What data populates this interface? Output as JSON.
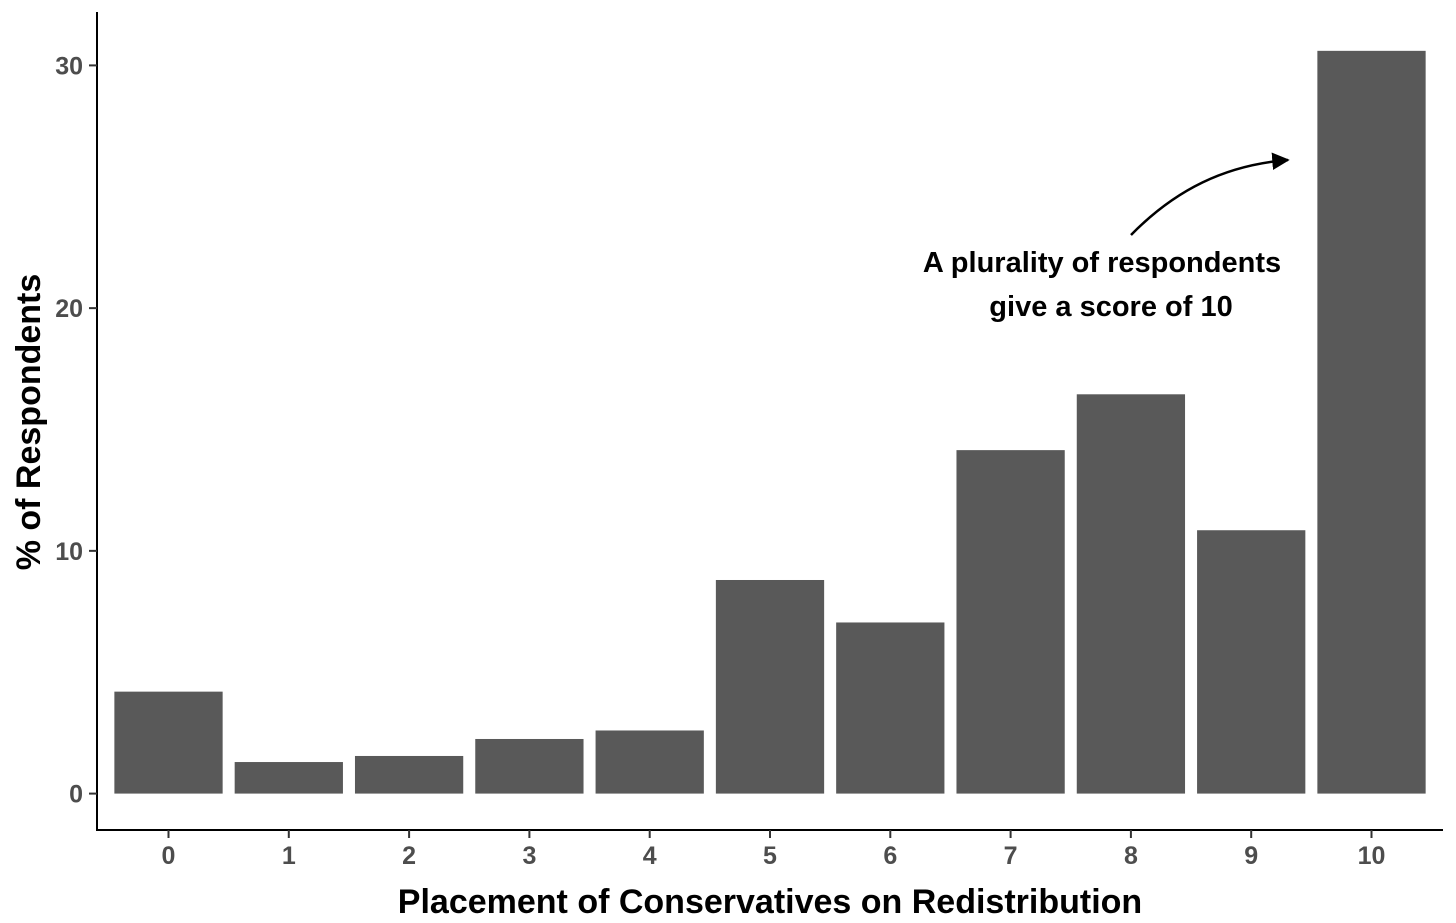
{
  "chart_data": {
    "type": "bar",
    "title": "",
    "xlabel": "Placement of Conservatives on Redistribution",
    "ylabel": "% of Respondents",
    "categories": [
      "0",
      "1",
      "2",
      "3",
      "4",
      "5",
      "6",
      "7",
      "8",
      "9",
      "10"
    ],
    "values": [
      4.2,
      1.3,
      1.55,
      2.25,
      2.6,
      8.8,
      7.05,
      14.15,
      16.45,
      10.85,
      30.6
    ],
    "ylim": [
      -1.5,
      32.2
    ],
    "yticks": [
      0,
      10,
      20,
      30
    ],
    "ytick_labels": [
      "0",
      "10",
      "20",
      "30"
    ],
    "grid": false,
    "legend": "none",
    "bar_color": "#595959",
    "annotation": {
      "lines": [
        "A plurality of respondents",
        "give a score of 10"
      ],
      "points_to": {
        "category": "10",
        "y": 26
      }
    }
  }
}
